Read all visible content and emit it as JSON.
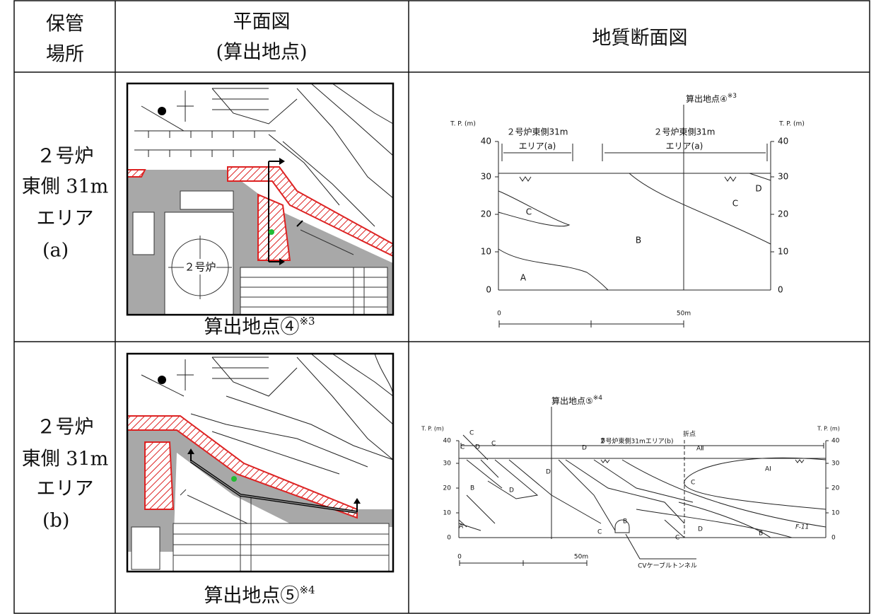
{
  "header": {
    "storage": [
      "保管",
      "場所"
    ],
    "plan": [
      "平面図",
      "(算出地点)"
    ],
    "section": "地質断面図"
  },
  "rows": [
    {
      "storage": [
        "２号炉",
        "東側 31m",
        "エリア",
        "(a)"
      ],
      "plan": {
        "reactor_label": "２号炉",
        "caption": "算出地点④",
        "caption_note": "※3"
      },
      "section": {
        "axis_label": "T. P. (m)",
        "yticks": [
          40,
          30,
          20,
          10,
          0
        ],
        "point_label": "算出地点④",
        "point_note": "※3",
        "area_left": [
          "２号炉東側31m",
          "エリア(a)"
        ],
        "area_right": [
          "２号炉東側31m",
          "エリア(a)"
        ],
        "zones": [
          "C",
          "B",
          "A",
          "C",
          "D"
        ],
        "scale": [
          "0",
          "50m"
        ]
      }
    },
    {
      "storage": [
        "２号炉",
        "東側 31m",
        "エリア",
        "(b)"
      ],
      "plan": {
        "caption": "算出地点⑤",
        "caption_note": "※4"
      },
      "section": {
        "axis_label": "T. P. (m)",
        "yticks": [
          40,
          30,
          20,
          10,
          0
        ],
        "point_label": "算出地点⑤",
        "point_note": "※4",
        "bend_label": "折点",
        "area": "２号炉東側31mエリア(b)",
        "tunnel": "CVケーブルトンネル",
        "fault": "F-11",
        "zones": [
          "C",
          "C",
          "D",
          "C",
          "D",
          "D",
          "B",
          "AⅡ",
          "AⅠ",
          "B",
          "D",
          "C",
          "A",
          "C",
          "B",
          "C",
          "D",
          "B"
        ],
        "scale": [
          "0",
          "50m"
        ]
      }
    }
  ]
}
